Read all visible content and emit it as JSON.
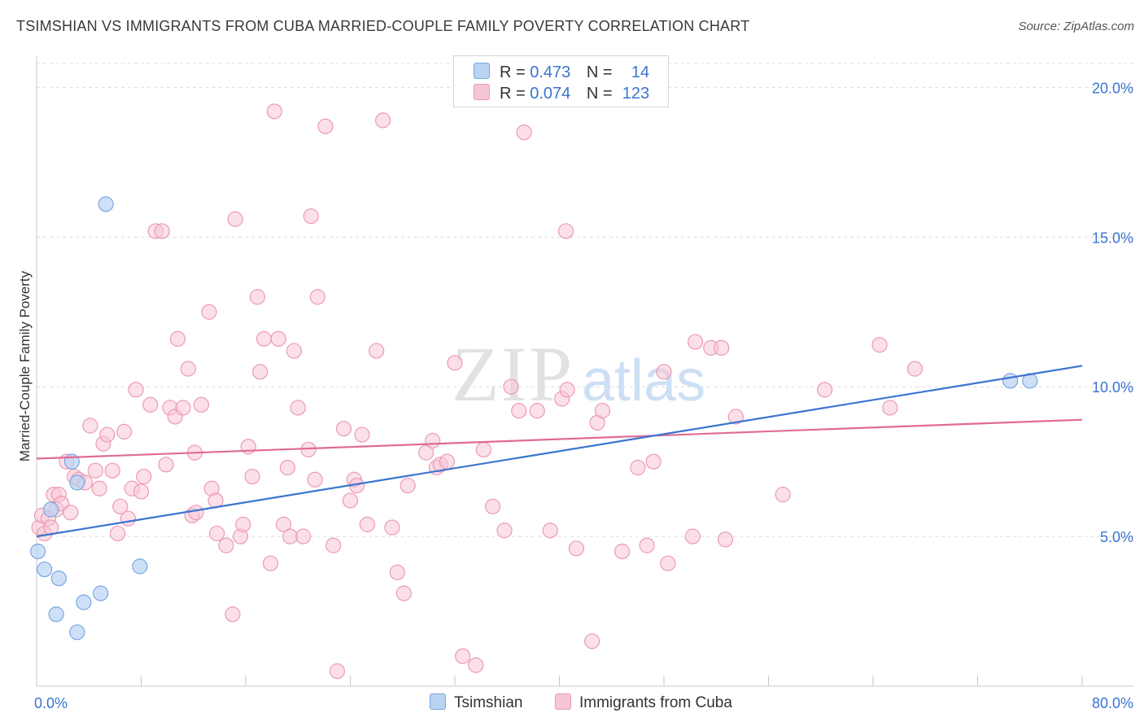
{
  "title": "TSIMSHIAN VS IMMIGRANTS FROM CUBA MARRIED-COUPLE FAMILY POVERTY CORRELATION CHART",
  "source": "Source: ZipAtlas.com",
  "watermark": {
    "zip": "ZIP",
    "atlas": "atlas"
  },
  "legend": {
    "series1": {
      "r_label": "R =",
      "r_value": "0.473",
      "n_label": "N =",
      "n_value": "14"
    },
    "series2": {
      "r_label": "R =",
      "r_value": "0.074",
      "n_label": "N =",
      "n_value": "123"
    }
  },
  "chart_data": {
    "type": "scatter",
    "title": "TSIMSHIAN VS IMMIGRANTS FROM CUBA MARRIED-COUPLE FAMILY POVERTY CORRELATION CHART",
    "xlabel": "",
    "ylabel": "Married-Couple Family Poverty",
    "xlim": [
      0,
      80
    ],
    "ylim": [
      0,
      20.8
    ],
    "x_tick_labels": [
      "0.0%",
      "80.0%"
    ],
    "y_ticks": [
      5,
      10,
      15,
      20
    ],
    "y_tick_labels": [
      "5.0%",
      "10.0%",
      "15.0%",
      "20.0%"
    ],
    "colors": {
      "series1_fill": "#b9d3f3",
      "series1_stroke": "#7aa6df",
      "series1_line": "#3a74d0",
      "series2_fill": "#f7c6d5",
      "series2_stroke": "#ec9ab4",
      "series2_line": "#e06b94"
    },
    "series": [
      {
        "name": "Tsimshian",
        "trend": [
          [
            0,
            5.0
          ],
          [
            80,
            10.7
          ]
        ],
        "points": [
          [
            0.1,
            4.5
          ],
          [
            0.6,
            3.9
          ],
          [
            1.1,
            5.9
          ],
          [
            1.7,
            3.6
          ],
          [
            1.5,
            2.4
          ],
          [
            2.7,
            7.5
          ],
          [
            3.1,
            6.8
          ],
          [
            3.6,
            2.8
          ],
          [
            3.1,
            1.8
          ],
          [
            4.9,
            3.1
          ],
          [
            5.3,
            16.1
          ],
          [
            7.9,
            4.0
          ],
          [
            74.5,
            10.2
          ],
          [
            76.0,
            10.2
          ]
        ]
      },
      {
        "name": "Immigrants from Cuba",
        "trend": [
          [
            0,
            7.6
          ],
          [
            80,
            8.9
          ]
        ],
        "points": [
          [
            0.2,
            5.3
          ],
          [
            0.4,
            5.7
          ],
          [
            0.6,
            5.1
          ],
          [
            0.9,
            5.6
          ],
          [
            1.1,
            5.3
          ],
          [
            1.3,
            6.4
          ],
          [
            1.5,
            5.9
          ],
          [
            1.7,
            6.4
          ],
          [
            1.9,
            6.1
          ],
          [
            2.3,
            7.5
          ],
          [
            2.6,
            5.8
          ],
          [
            2.9,
            7.0
          ],
          [
            3.2,
            6.9
          ],
          [
            3.7,
            6.8
          ],
          [
            4.1,
            8.7
          ],
          [
            4.5,
            7.2
          ],
          [
            4.8,
            6.6
          ],
          [
            5.1,
            8.1
          ],
          [
            5.4,
            8.4
          ],
          [
            5.8,
            7.2
          ],
          [
            6.2,
            5.1
          ],
          [
            6.4,
            6.0
          ],
          [
            6.7,
            8.5
          ],
          [
            7.0,
            5.6
          ],
          [
            7.3,
            6.6
          ],
          [
            7.6,
            9.9
          ],
          [
            8.0,
            6.5
          ],
          [
            8.2,
            7.0
          ],
          [
            8.7,
            9.4
          ],
          [
            9.1,
            15.2
          ],
          [
            9.6,
            15.2
          ],
          [
            9.9,
            7.4
          ],
          [
            10.2,
            9.3
          ],
          [
            10.6,
            9.0
          ],
          [
            10.8,
            11.6
          ],
          [
            11.2,
            9.3
          ],
          [
            11.6,
            10.6
          ],
          [
            11.9,
            5.7
          ],
          [
            12.1,
            7.8
          ],
          [
            12.2,
            5.8
          ],
          [
            12.6,
            9.4
          ],
          [
            13.2,
            12.5
          ],
          [
            13.4,
            6.6
          ],
          [
            13.7,
            6.2
          ],
          [
            13.8,
            5.1
          ],
          [
            14.5,
            4.7
          ],
          [
            15.0,
            2.4
          ],
          [
            15.2,
            15.6
          ],
          [
            15.6,
            5.0
          ],
          [
            15.8,
            5.4
          ],
          [
            16.2,
            8.0
          ],
          [
            16.5,
            7.0
          ],
          [
            16.9,
            13.0
          ],
          [
            17.1,
            10.5
          ],
          [
            17.4,
            11.6
          ],
          [
            17.9,
            4.1
          ],
          [
            18.2,
            19.2
          ],
          [
            18.5,
            11.6
          ],
          [
            18.9,
            5.4
          ],
          [
            19.2,
            7.3
          ],
          [
            19.4,
            5.0
          ],
          [
            19.7,
            11.2
          ],
          [
            20.0,
            9.3
          ],
          [
            20.4,
            5.0
          ],
          [
            20.8,
            7.9
          ],
          [
            21.0,
            15.7
          ],
          [
            21.3,
            6.9
          ],
          [
            21.5,
            13.0
          ],
          [
            22.1,
            18.7
          ],
          [
            22.7,
            4.7
          ],
          [
            23.0,
            0.5
          ],
          [
            23.5,
            8.6
          ],
          [
            24.0,
            6.2
          ],
          [
            24.3,
            6.9
          ],
          [
            24.5,
            6.7
          ],
          [
            24.9,
            8.4
          ],
          [
            25.3,
            5.4
          ],
          [
            26.0,
            11.2
          ],
          [
            26.5,
            18.9
          ],
          [
            27.2,
            5.3
          ],
          [
            27.6,
            3.8
          ],
          [
            28.1,
            3.1
          ],
          [
            28.4,
            6.7
          ],
          [
            29.8,
            7.8
          ],
          [
            30.3,
            8.2
          ],
          [
            30.6,
            7.3
          ],
          [
            30.9,
            7.4
          ],
          [
            31.4,
            7.5
          ],
          [
            32.0,
            10.8
          ],
          [
            32.6,
            1.0
          ],
          [
            33.6,
            0.7
          ],
          [
            34.2,
            7.9
          ],
          [
            34.9,
            6.0
          ],
          [
            35.8,
            5.2
          ],
          [
            36.3,
            10.0
          ],
          [
            36.9,
            9.2
          ],
          [
            37.3,
            18.5
          ],
          [
            38.3,
            9.2
          ],
          [
            39.3,
            5.2
          ],
          [
            40.2,
            9.6
          ],
          [
            40.5,
            15.2
          ],
          [
            40.6,
            9.9
          ],
          [
            41.3,
            4.6
          ],
          [
            42.5,
            1.5
          ],
          [
            42.9,
            8.8
          ],
          [
            43.3,
            9.2
          ],
          [
            44.8,
            4.5
          ],
          [
            46.0,
            7.3
          ],
          [
            46.7,
            4.7
          ],
          [
            47.2,
            7.5
          ],
          [
            48.0,
            10.5
          ],
          [
            48.3,
            4.1
          ],
          [
            50.2,
            5.0
          ],
          [
            50.4,
            11.5
          ],
          [
            51.6,
            11.3
          ],
          [
            52.4,
            11.3
          ],
          [
            52.7,
            4.9
          ],
          [
            53.5,
            9.0
          ],
          [
            57.1,
            6.4
          ],
          [
            60.3,
            9.9
          ],
          [
            64.5,
            11.4
          ],
          [
            65.3,
            9.3
          ],
          [
            67.2,
            10.6
          ]
        ]
      }
    ]
  },
  "bottom_legend": {
    "series1": "Tsimshian",
    "series2": "Immigrants from Cuba"
  }
}
